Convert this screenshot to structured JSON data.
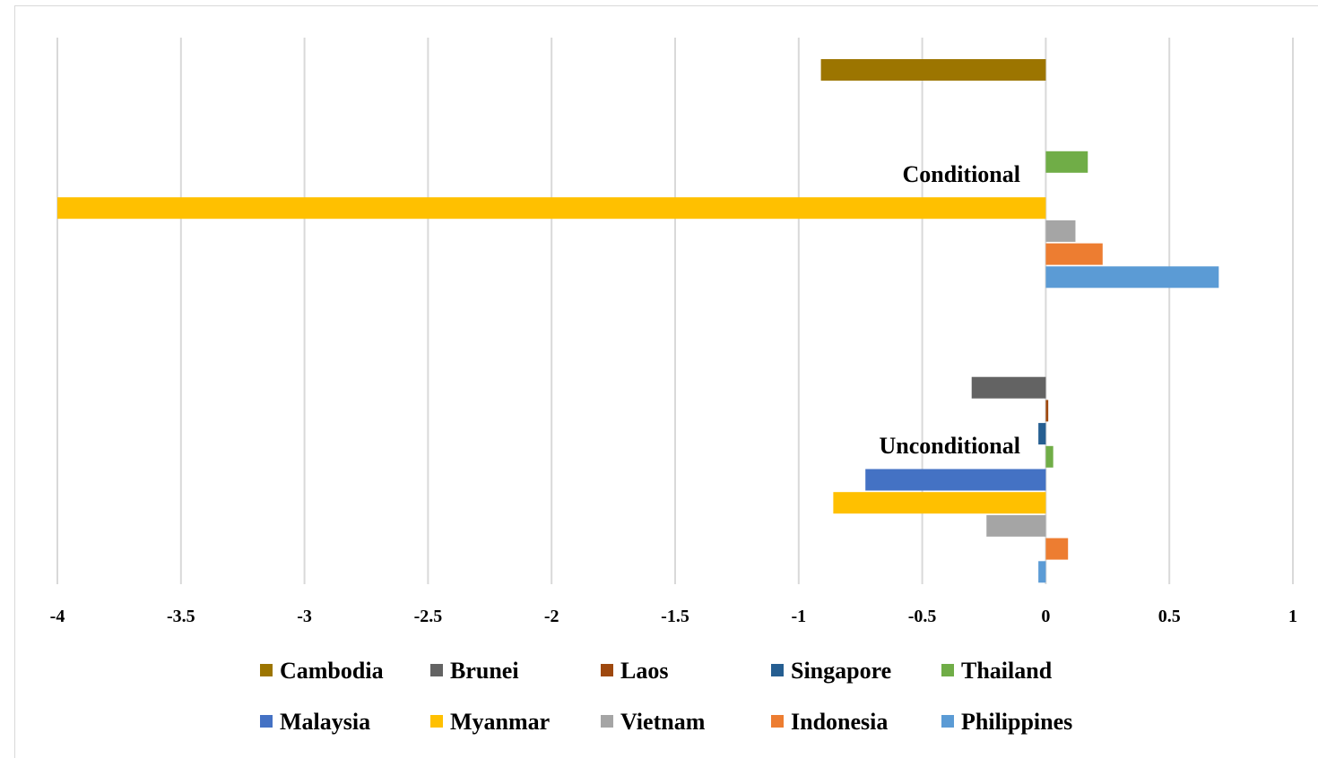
{
  "chart_data": {
    "type": "bar",
    "orientation": "horizontal",
    "categories": [
      "Conditional",
      "Unconditional"
    ],
    "xlim": [
      -4,
      1
    ],
    "x_ticks": [
      "-4",
      "-3.5",
      "-3",
      "-2.5",
      "-2",
      "-1.5",
      "-1",
      "-0.5",
      "0",
      "0.5",
      "1"
    ],
    "grid": "vertical",
    "legend_position": "bottom",
    "series": [
      {
        "name": "Cambodia",
        "color": "#9c7500",
        "values": [
          -0.91,
          null
        ]
      },
      {
        "name": "Brunei",
        "color": "#636363",
        "values": [
          null,
          -0.3
        ]
      },
      {
        "name": "Laos",
        "color": "#9e480e",
        "values": [
          null,
          0.01
        ]
      },
      {
        "name": "Singapore",
        "color": "#255e91",
        "values": [
          null,
          -0.03
        ]
      },
      {
        "name": "Thailand",
        "color": "#70ad47",
        "values": [
          0.17,
          0.03
        ]
      },
      {
        "name": "Malaysia",
        "color": "#4472c4",
        "values": [
          null,
          -0.73
        ]
      },
      {
        "name": "Myanmar",
        "color": "#ffc000",
        "values": [
          -4.0,
          -0.86
        ]
      },
      {
        "name": "Vietnam",
        "color": "#a5a5a5",
        "values": [
          0.12,
          -0.24
        ]
      },
      {
        "name": "Indonesia",
        "color": "#ed7d31",
        "values": [
          0.23,
          0.09
        ]
      },
      {
        "name": "Philippines",
        "color": "#5b9bd5",
        "values": [
          0.7,
          -0.03
        ]
      }
    ]
  }
}
